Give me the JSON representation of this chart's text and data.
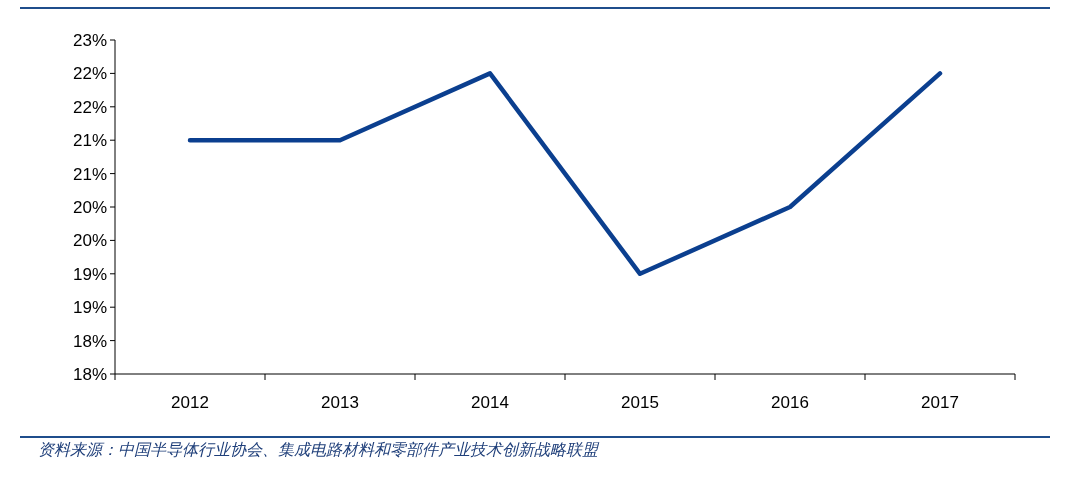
{
  "chart_data": {
    "type": "line",
    "categories": [
      "2012",
      "2013",
      "2014",
      "2015",
      "2016",
      "2017"
    ],
    "series": [
      {
        "color": "#0b3f8f",
        "values": [
          21.0,
          21.0,
          22.0,
          19.0,
          20.0,
          22.0
        ]
      }
    ],
    "ylim": [
      17.5,
      22.5
    ],
    "yticks": [
      {
        "value": 17.5,
        "label": "18%"
      },
      {
        "value": 18,
        "label": "18%"
      },
      {
        "value": 18.5,
        "label": "19%"
      },
      {
        "value": 19,
        "label": "19%"
      },
      {
        "value": 19.5,
        "label": "20%"
      },
      {
        "value": 20,
        "label": "20%"
      },
      {
        "value": 20.5,
        "label": "21%"
      },
      {
        "value": 21,
        "label": "21%"
      },
      {
        "value": 21.5,
        "label": "22%"
      },
      {
        "value": 22,
        "label": "22%"
      },
      {
        "value": 22.5,
        "label": "23%"
      }
    ],
    "grid": false,
    "marker": "none",
    "line_style": "solid",
    "annotations": [
      "资料来源：中国半导体行业协会、集成电路材料和零部件产业技术创新战略联盟"
    ]
  }
}
